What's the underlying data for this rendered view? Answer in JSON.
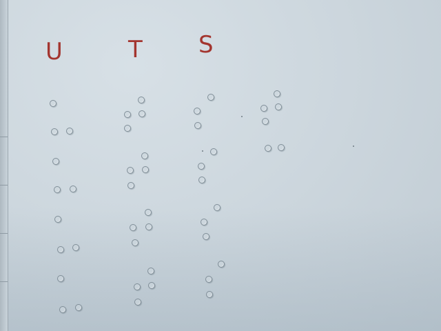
{
  "labels": {
    "u": "U",
    "t": "T",
    "s": "S"
  },
  "colors": {
    "ink": "#a3352f",
    "paper": "#cdd7de"
  }
}
